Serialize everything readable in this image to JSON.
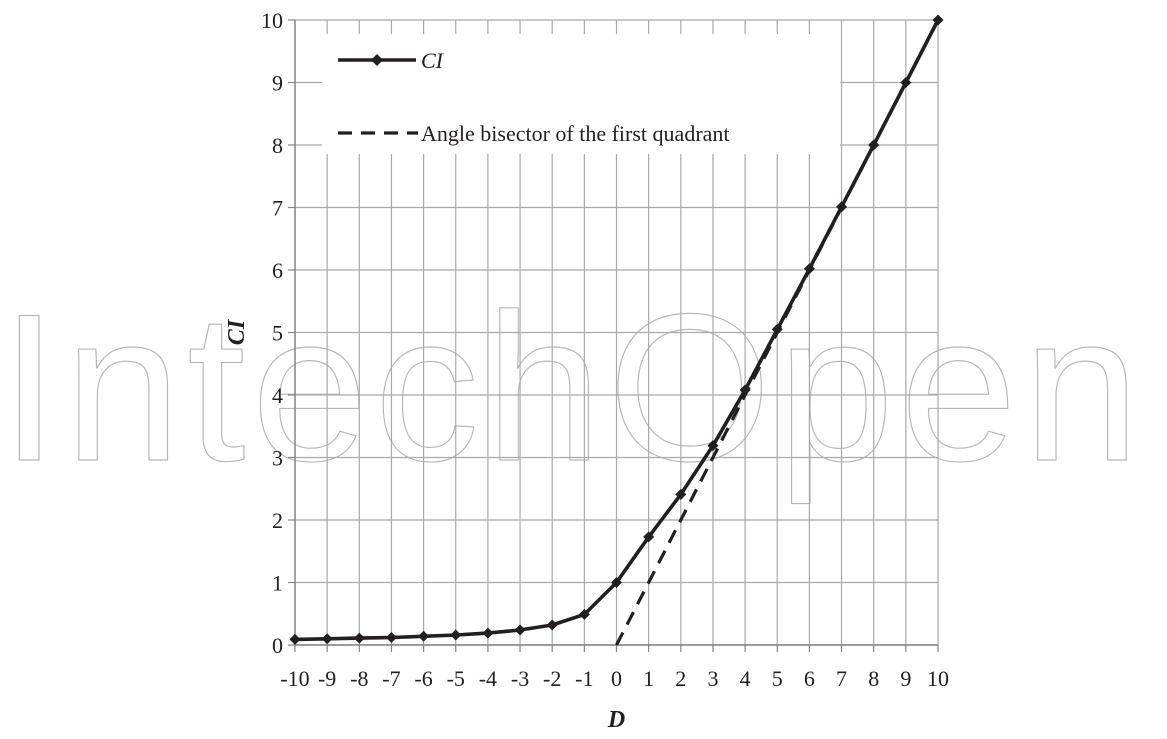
{
  "watermark": "IntechOpen",
  "chart_data": {
    "type": "line",
    "title": "",
    "xlabel": "D",
    "ylabel": "CI",
    "xlim": [
      -10,
      10
    ],
    "ylim": [
      0,
      10
    ],
    "x_ticks": [
      "-10",
      "-9",
      "-8",
      "-7",
      "-6",
      "-5",
      "-4",
      "-3",
      "-2",
      "-1",
      "0",
      "1",
      "2",
      "3",
      "4",
      "5",
      "6",
      "7",
      "8",
      "9",
      "10"
    ],
    "y_ticks": [
      "0",
      "1",
      "2",
      "3",
      "4",
      "5",
      "6",
      "7",
      "8",
      "9",
      "10"
    ],
    "grid": true,
    "legend_position": "top-left",
    "series": [
      {
        "name": "CI",
        "style": "solid-diamond",
        "color": "#231f20",
        "x": [
          -10,
          -9,
          -8,
          -7,
          -6,
          -5,
          -4,
          -3,
          -2,
          -1,
          0,
          1,
          2,
          3,
          4,
          5,
          6,
          7,
          8,
          9,
          10
        ],
        "y": [
          0.09,
          0.1,
          0.11,
          0.12,
          0.14,
          0.16,
          0.19,
          0.24,
          0.32,
          0.49,
          1.0,
          1.73,
          2.41,
          3.19,
          4.08,
          5.05,
          6.02,
          7.01,
          8.0,
          9.0,
          10.0
        ]
      },
      {
        "name": "Angle bisector of the first quadrant",
        "style": "dashed",
        "color": "#231f20",
        "x": [
          0,
          10
        ],
        "y": [
          0,
          10
        ]
      }
    ]
  }
}
